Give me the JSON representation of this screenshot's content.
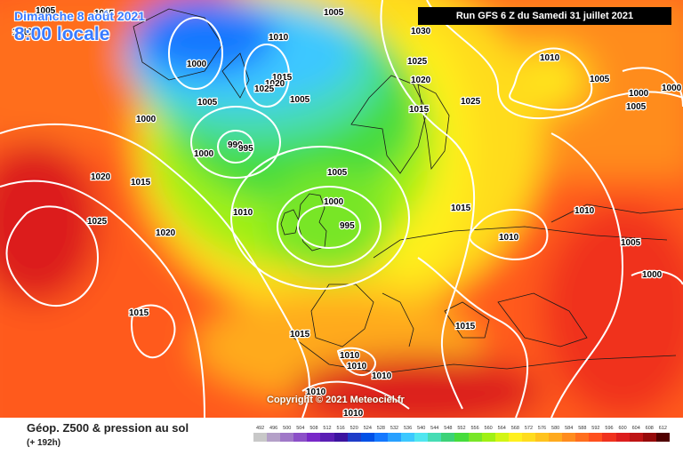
{
  "header": {
    "date": "Dimanche 8 août 2021",
    "time": "8:00 locale",
    "run": "Run GFS 6 Z du Samedi 31 juillet 2021"
  },
  "copyright": "Copyright © 2021 Meteociel.fr",
  "legend": {
    "title": "Géop. Z500 & pression au sol",
    "subtitle": "(+ 192h)",
    "scale": [
      {
        "value": "492",
        "color": "#c8c8c8"
      },
      {
        "value": "496",
        "color": "#b4a0c8"
      },
      {
        "value": "500",
        "color": "#a078c8"
      },
      {
        "value": "504",
        "color": "#8c50c8"
      },
      {
        "value": "508",
        "color": "#7828c8"
      },
      {
        "value": "512",
        "color": "#5a1eb4"
      },
      {
        "value": "516",
        "color": "#3c14a0"
      },
      {
        "value": "520",
        "color": "#1e3cc8"
      },
      {
        "value": "524",
        "color": "#0050e6"
      },
      {
        "value": "528",
        "color": "#1478ff"
      },
      {
        "value": "532",
        "color": "#28a0ff"
      },
      {
        "value": "536",
        "color": "#3cc8ff"
      },
      {
        "value": "540",
        "color": "#50e6f0"
      },
      {
        "value": "544",
        "color": "#46dcb4"
      },
      {
        "value": "548",
        "color": "#3cd278"
      },
      {
        "value": "552",
        "color": "#46dc3c"
      },
      {
        "value": "556",
        "color": "#78e628"
      },
      {
        "value": "560",
        "color": "#a0f014"
      },
      {
        "value": "564",
        "color": "#d2f514"
      },
      {
        "value": "568",
        "color": "#fff01e"
      },
      {
        "value": "572",
        "color": "#ffdc1e"
      },
      {
        "value": "576",
        "color": "#ffc31e"
      },
      {
        "value": "580",
        "color": "#ffaa1e"
      },
      {
        "value": "584",
        "color": "#ff8c1e"
      },
      {
        "value": "588",
        "color": "#ff6e1e"
      },
      {
        "value": "592",
        "color": "#ff501e"
      },
      {
        "value": "596",
        "color": "#f0321e"
      },
      {
        "value": "600",
        "color": "#dc1e1e"
      },
      {
        "value": "604",
        "color": "#be1414"
      },
      {
        "value": "608",
        "color": "#960a0a"
      },
      {
        "value": "612",
        "color": "#500000"
      }
    ]
  },
  "isobar_labels": [
    "1005",
    "1015",
    "1010",
    "1005",
    "1000",
    "1010",
    "1030",
    "1025",
    "1020",
    "1015",
    "1025",
    "1010",
    "1005",
    "1000",
    "1000",
    "1005",
    "1015",
    "1020",
    "1025",
    "1005",
    "1000",
    "990",
    "995",
    "1000",
    "1005",
    "1005",
    "1020",
    "1015",
    "1010",
    "1000",
    "995",
    "1015",
    "1010",
    "1025",
    "1020",
    "1010",
    "1005",
    "1000",
    "1015",
    "1015",
    "1015",
    "1010",
    "1010",
    "1010",
    "1010",
    "1010"
  ]
}
